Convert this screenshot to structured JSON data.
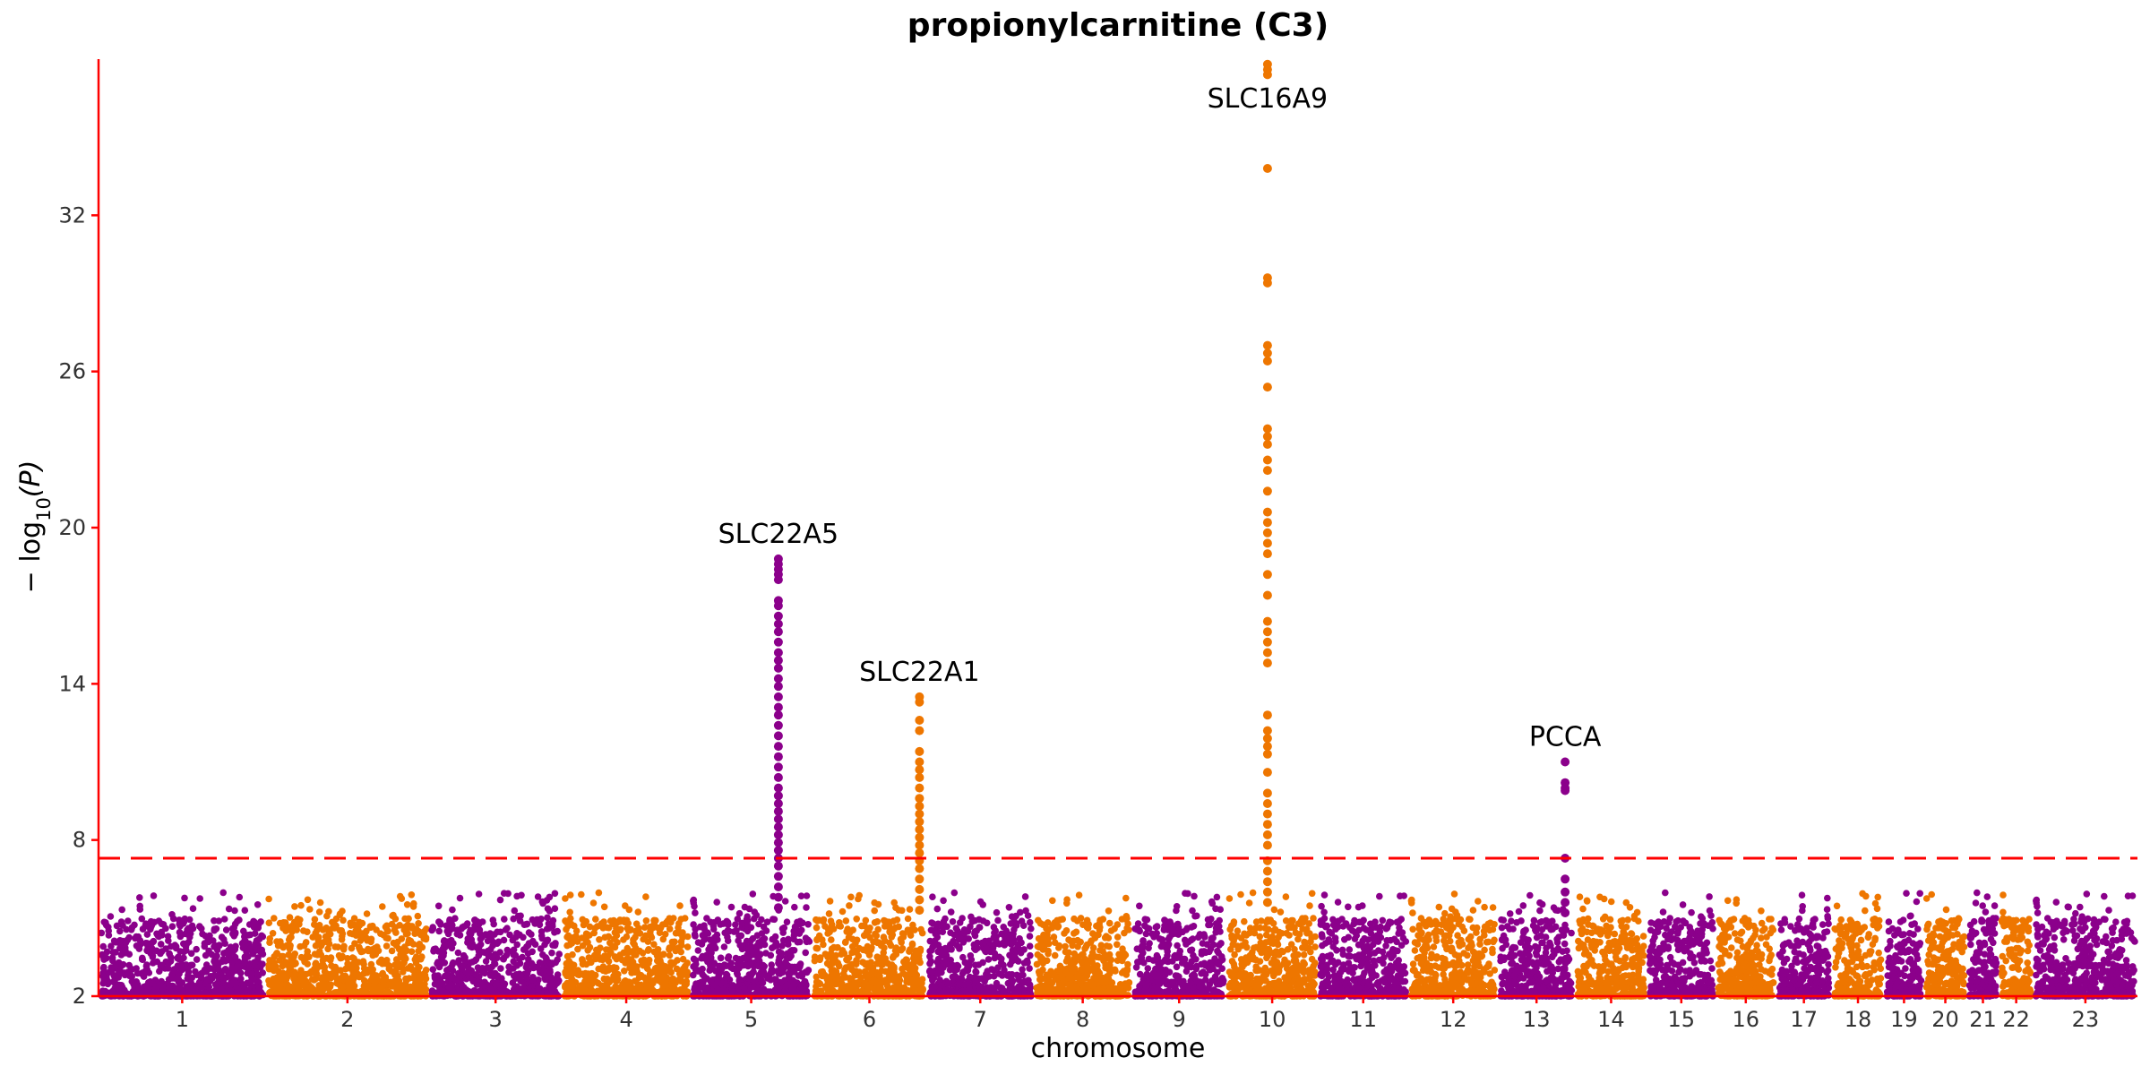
{
  "chart_data": {
    "type": "scatter",
    "title": "propionylcarnitine (C3)",
    "xlabel": "chromosome",
    "ylabel_main": "− log",
    "ylabel_sub": "10",
    "ylabel_arg": "(P)",
    "ylim": [
      2,
      38
    ],
    "yticks": [
      2,
      8,
      14,
      20,
      26,
      32
    ],
    "threshold": 7.3,
    "colors": {
      "odd": "#8B008B",
      "even": "#EE7600",
      "axis": "#FF0000",
      "threshold": "#FF0000"
    },
    "chromosomes": [
      {
        "label": "1",
        "length": 249
      },
      {
        "label": "2",
        "length": 243
      },
      {
        "label": "3",
        "length": 198
      },
      {
        "label": "4",
        "length": 191
      },
      {
        "label": "5",
        "length": 181
      },
      {
        "label": "6",
        "length": 171
      },
      {
        "label": "7",
        "length": 159
      },
      {
        "label": "8",
        "length": 146
      },
      {
        "label": "9",
        "length": 141
      },
      {
        "label": "10",
        "length": 136
      },
      {
        "label": "11",
        "length": 135
      },
      {
        "label": "12",
        "length": 133
      },
      {
        "label": "13",
        "length": 115
      },
      {
        "label": "14",
        "length": 107
      },
      {
        "label": "15",
        "length": 102
      },
      {
        "label": "16",
        "length": 90
      },
      {
        "label": "17",
        "length": 83
      },
      {
        "label": "18",
        "length": 78
      },
      {
        "label": "19",
        "length": 59
      },
      {
        "label": "20",
        "length": 64
      },
      {
        "label": "21",
        "length": 48
      },
      {
        "label": "22",
        "length": 51
      },
      {
        "label": "23",
        "length": 155
      }
    ],
    "peaks": [
      {
        "gene": "SLC22A5",
        "chromosome": "5",
        "position": 131,
        "max": 18.8,
        "values": [
          18.8,
          18.6,
          18.4,
          18.2,
          18.0,
          17.2,
          17.0,
          16.6,
          16.3,
          16.0,
          15.6,
          15.2,
          14.9,
          14.6,
          14.2,
          13.9,
          13.5,
          13.1,
          12.8,
          12.4,
          12.0,
          11.6,
          11.2,
          10.8,
          10.4,
          10.0,
          9.7,
          9.4,
          9.1,
          8.8,
          8.5,
          8.2,
          7.9,
          7.6,
          7.3,
          7.0,
          6.6,
          6.2,
          5.8,
          5.4
        ]
      },
      {
        "gene": "SLC22A1",
        "chromosome": "6",
        "position": 160,
        "max": 13.5,
        "values": [
          13.5,
          13.3,
          12.6,
          12.2,
          11.4,
          11.0,
          10.7,
          10.4,
          10.0,
          9.6,
          9.3,
          9.0,
          8.7,
          8.4,
          8.1,
          7.8,
          7.5,
          7.2,
          6.9,
          6.5,
          6.1,
          5.7,
          5.3
        ]
      },
      {
        "gene": "SLC16A9",
        "chromosome": "10",
        "position": 61,
        "max": 37.8,
        "values": [
          37.8,
          37.6,
          37.4,
          33.8,
          29.6,
          29.4,
          27.0,
          26.7,
          26.4,
          25.4,
          23.8,
          23.5,
          23.2,
          22.6,
          22.2,
          21.4,
          20.6,
          20.2,
          19.8,
          19.4,
          19.0,
          18.2,
          17.4,
          16.4,
          16.0,
          15.6,
          15.2,
          14.8,
          12.8,
          12.2,
          11.9,
          11.6,
          11.3,
          10.6,
          9.8,
          9.4,
          9.0,
          8.6,
          8.2,
          7.8,
          7.2,
          6.8,
          6.4,
          6.0,
          5.6
        ]
      },
      {
        "gene": "PCCA",
        "chromosome": "13",
        "position": 100,
        "max": 11.0,
        "values": [
          11.0,
          10.2,
          10.0,
          9.9,
          7.3,
          6.5,
          6.0,
          5.6,
          5.2
        ]
      }
    ]
  }
}
